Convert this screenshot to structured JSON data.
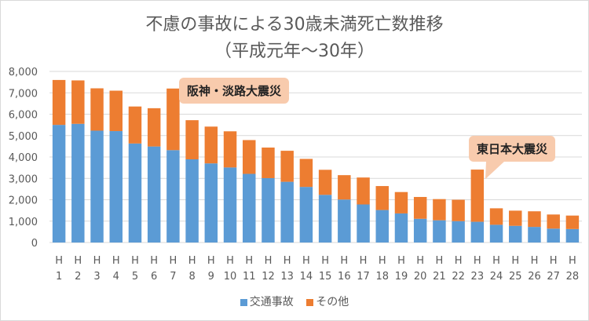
{
  "chart_data": {
    "type": "bar",
    "stacked": true,
    "title": "不慮の事故による30歳未満死亡数推移",
    "subtitle": "（平成元年～30年）",
    "categories": [
      "H 1",
      "H 2",
      "H 3",
      "H 4",
      "H 5",
      "H 6",
      "H 7",
      "H 8",
      "H 9",
      "H 10",
      "H 11",
      "H 12",
      "H 13",
      "H 14",
      "H 15",
      "H 16",
      "H 17",
      "H 18",
      "H 19",
      "H 20",
      "H 21",
      "H 22",
      "H 23",
      "H 24",
      "H 25",
      "H 26",
      "H 27",
      "H 28"
    ],
    "series": [
      {
        "name": "交通事故",
        "color": "#5b9bd5",
        "values": [
          5500,
          5550,
          5230,
          5210,
          4630,
          4490,
          4320,
          3890,
          3700,
          3510,
          3210,
          3010,
          2840,
          2600,
          2230,
          2010,
          1780,
          1520,
          1360,
          1110,
          1040,
          1000,
          970,
          830,
          780,
          730,
          650,
          630
        ]
      },
      {
        "name": "その他",
        "color": "#ed7d31",
        "values": [
          2100,
          2030,
          1980,
          1890,
          1730,
          1790,
          2880,
          1830,
          1720,
          1690,
          1580,
          1430,
          1450,
          1310,
          1170,
          1140,
          1260,
          1120,
          1000,
          1020,
          990,
          1000,
          2440,
          770,
          710,
          730,
          660,
          630
        ]
      }
    ],
    "ylim": [
      0,
      8000
    ],
    "yticks": [
      "0",
      "1,000",
      "2,000",
      "3,000",
      "4,000",
      "5,000",
      "6,000",
      "7,000",
      "8,000"
    ],
    "grid": true,
    "legend": "bottom",
    "annotations": [
      {
        "text": "阪神・淡路大震災",
        "category": "H 7"
      },
      {
        "text": "東日本大震災",
        "category": "H 23"
      }
    ]
  }
}
